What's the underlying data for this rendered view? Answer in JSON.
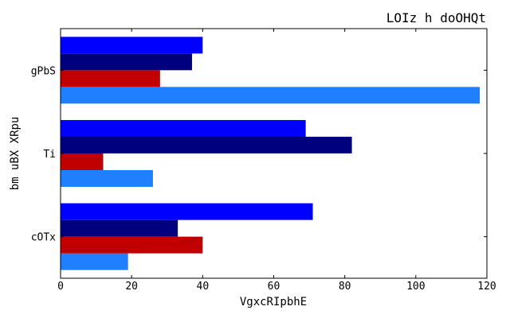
{
  "chart_data": {
    "type": "bar",
    "orientation": "horizontal",
    "title": "LOIz h doOHQt",
    "xlabel": "VgxcRIpbhE",
    "ylabel": "bm uBX XRpu",
    "categories": [
      "cOTx",
      "Ti",
      "gPbS"
    ],
    "xlim": [
      0,
      120
    ],
    "x_ticks": [
      "0",
      "20",
      "40",
      "60",
      "80",
      "100",
      "120"
    ],
    "grid": false,
    "series": [
      {
        "color": "#1f7fff",
        "values": [
          19,
          26,
          118
        ]
      },
      {
        "color": "#c00000",
        "values": [
          40,
          12,
          28
        ]
      },
      {
        "color": "#00007f",
        "values": [
          33,
          82,
          37
        ]
      },
      {
        "color": "#0000ff",
        "values": [
          71,
          69,
          40
        ]
      }
    ]
  }
}
